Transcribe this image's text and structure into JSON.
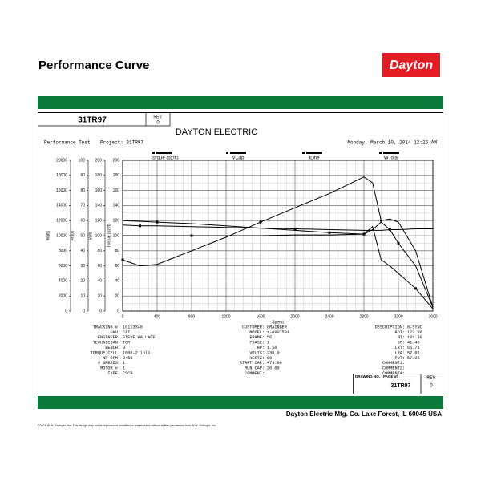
{
  "header": {
    "title": "Performance Curve",
    "logo": "Dayton"
  },
  "sheet": {
    "part_number": "31TR97",
    "rev_label": "REV.",
    "rev": "0",
    "company": "DAYTON ELECTRIC",
    "test": "Performance Test",
    "project": "Project: 31TR97",
    "date": "Monday, March 10, 2014  12:26 AM"
  },
  "chart_data": {
    "type": "line",
    "xlabel": "Speed",
    "x": [
      0,
      200,
      400,
      800,
      1200,
      1600,
      2000,
      2400,
      2800,
      2900,
      3000,
      3100,
      3200,
      3400,
      3600
    ],
    "xlim": [
      0,
      3600
    ],
    "xticks": [
      0,
      400,
      800,
      1200,
      1600,
      2000,
      2400,
      2800,
      3200,
      3600
    ],
    "ylabel": "Torque (oz/ft)",
    "ylim": [
      0,
      200
    ],
    "yticks": [
      0,
      20,
      40,
      60,
      80,
      100,
      120,
      140,
      160,
      180,
      200
    ],
    "extra_axes": [
      {
        "label": "Watts",
        "lim": [
          0,
          20000
        ],
        "ticks": [
          0,
          2000,
          4000,
          6000,
          8000,
          10000,
          12000,
          14000,
          16000,
          18000,
          20000
        ]
      },
      {
        "label": "Amps",
        "lim": [
          0,
          100
        ],
        "ticks": [
          0,
          10,
          20,
          30,
          40,
          50,
          60,
          70,
          80,
          90,
          100
        ]
      },
      {
        "label": "Volts",
        "lim": [
          0,
          200
        ],
        "ticks": [
          0,
          20,
          40,
          60,
          80,
          100,
          120,
          140,
          160,
          180,
          200
        ]
      }
    ],
    "grid": true,
    "series": [
      {
        "name": "Torque (oz/ft)",
        "color": "#000000",
        "values": [
          68,
          60,
          62,
          80,
          98,
          118,
          137,
          156,
          178,
          170,
          120,
          122,
          118,
          80,
          5
        ]
      },
      {
        "name": "VCap",
        "color": "#000000",
        "values": [
          114,
          113,
          113,
          112,
          111,
          110,
          109,
          108,
          107,
          107,
          107,
          108,
          108,
          109,
          109
        ]
      },
      {
        "name": "ILine",
        "color": "#000000",
        "values": [
          120,
          119,
          118,
          116,
          113,
          110,
          107,
          104,
          102,
          108,
          118,
          108,
          90,
          60,
          5
        ]
      },
      {
        "name": "WTotal",
        "color": "#000000",
        "values": [
          100,
          100,
          100,
          100,
          100,
          100,
          101,
          101,
          102,
          112,
          68,
          60,
          50,
          30,
          3
        ]
      }
    ]
  },
  "info": {
    "columns": [
      [
        {
          "label": "TRACKING #:",
          "value": "10113340"
        },
        {
          "label": "SKU:",
          "value": "C&I"
        },
        {
          "label": "ENGINEER:",
          "value": "STEVE WALLACE"
        },
        {
          "label": "TECHNICIAN:",
          "value": "TOM"
        },
        {
          "label": "BENCH:",
          "value": "3"
        },
        {
          "label": "TORQUE CELL:",
          "value": "1000-2 inlb"
        },
        {
          "label": "NP RPM:",
          "value": "3450"
        },
        {
          "label": "# SPEEDS:",
          "value": "1"
        },
        {
          "label": "MOTOR #:",
          "value": "1"
        },
        {
          "label": "TYPE:",
          "value": "CSCR"
        }
      ],
      [
        {
          "label": "CUSTOMER:",
          "value": "GRAINGER"
        },
        {
          "label": "MODEL:",
          "value": "X-0007591"
        },
        {
          "label": "FRAME:",
          "value": "56"
        },
        {
          "label": "PHASE:",
          "value": "1"
        },
        {
          "label": "HP:",
          "value": "1.50"
        },
        {
          "label": "VOLTS:",
          "value": "230.0"
        },
        {
          "label": "HERTZ:",
          "value": "60"
        },
        {
          "label": "START CAP:",
          "value": "473.00"
        },
        {
          "label": "RUN CAP:",
          "value": "20.00"
        },
        {
          "label": "COMMENT:"
        }
      ],
      [
        {
          "label": "DESCRIPTION:",
          "value": "0-SYNC"
        },
        {
          "label": "BDT:",
          "value": "123.96"
        },
        {
          "label": "MT:",
          "value": "181.80"
        },
        {
          "label": "SF:",
          "value": "41.40"
        },
        {
          "label": "LRT:",
          "value": "65.71"
        },
        {
          "label": "LRA:",
          "value": "57.01"
        },
        {
          "label": "PUT:",
          "value": "57.02"
        },
        {
          "label": "COMMENT1:"
        },
        {
          "label": "COMMENT2:"
        },
        {
          "label": "COMMENT4:"
        }
      ]
    ]
  },
  "title_block": {
    "drawing_no": "DRAWING NO.",
    "page": "PAGE  of",
    "number": "31TR97",
    "rev_label": "REV.",
    "rev": "0"
  },
  "footer": {
    "address": "Dayton Electric Mfg. Co.  Lake Forest, IL  60045  USA",
    "copyright": "©2015 W.W. Grainger, Inc. This design may not be reproduced, modified or redistributed without written permission from W.W. Grainger, Inc."
  }
}
